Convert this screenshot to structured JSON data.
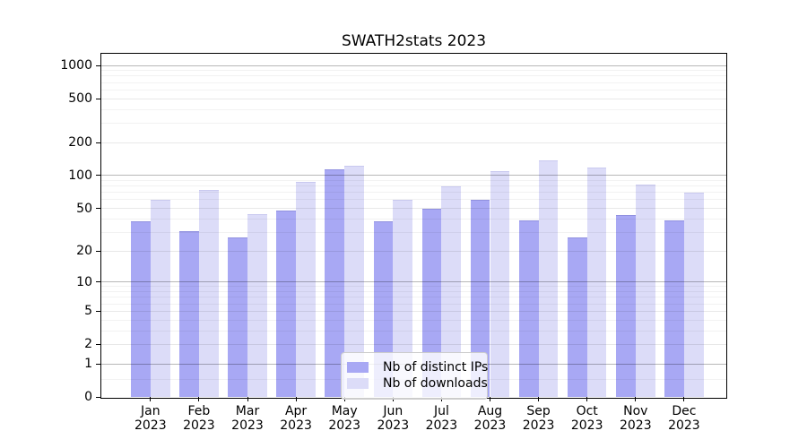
{
  "title": "SWATH2stats 2023",
  "chart_data": {
    "type": "bar",
    "title": "SWATH2stats 2023",
    "categories": [
      "Jan 2023",
      "Feb 2023",
      "Mar 2023",
      "Apr 2023",
      "May 2023",
      "Jun 2023",
      "Jul 2023",
      "Aug 2023",
      "Sep 2023",
      "Oct 2023",
      "Nov 2023",
      "Dec 2023"
    ],
    "month_labels": [
      "Jan",
      "Feb",
      "Mar",
      "Apr",
      "May",
      "Jun",
      "Jul",
      "Aug",
      "Sep",
      "Oct",
      "Nov",
      "Dec"
    ],
    "year_label": "2023",
    "series": [
      {
        "name": "Nb of distinct IPs",
        "color": "#a8a8f4",
        "edge_color": "#9191e0",
        "values": [
          38,
          31,
          27,
          48,
          114,
          38,
          50,
          60,
          39,
          27,
          43,
          39
        ]
      },
      {
        "name": "Nb of downloads",
        "color": "#dcdcf8",
        "edge_color": "#c9c9ef",
        "values": [
          60,
          74,
          44,
          88,
          123,
          60,
          79,
          110,
          137,
          119,
          83,
          70
        ]
      }
    ],
    "xlabel": "",
    "ylabel": "",
    "y_scale": "log10(1+v)",
    "y_ticks": [
      0,
      1,
      2,
      5,
      10,
      20,
      50,
      100,
      200,
      500,
      1000
    ],
    "ylim": [
      0,
      1200
    ],
    "grid": true,
    "legend_position": "inside-bottom-center",
    "render_hints": {
      "minor_gridline_values": [
        0.45,
        3,
        4,
        6,
        7,
        8,
        9,
        30,
        40,
        60,
        70,
        80,
        90,
        300,
        400,
        600,
        700,
        800,
        900
      ],
      "light_major_gridline_values": [
        2,
        5,
        20,
        50,
        200,
        500
      ],
      "dark_major_gridline_values": [
        1,
        10,
        100,
        1000
      ]
    }
  }
}
